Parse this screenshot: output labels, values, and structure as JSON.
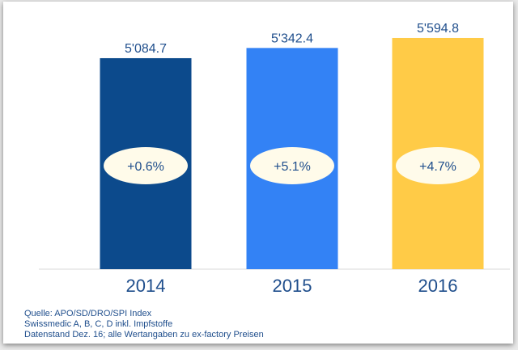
{
  "chart_data": {
    "type": "bar",
    "categories": [
      "2014",
      "2015",
      "2016"
    ],
    "values": [
      5084.7,
      5342.4,
      5594.8
    ],
    "value_labels": [
      "5'084.7",
      "5'342.4",
      "5'594.8"
    ],
    "growth_labels": [
      "+0.6%",
      "+5.1%",
      "+4.7%"
    ],
    "colors": [
      "#0c4a8c",
      "#3382f5",
      "#ffcb47"
    ],
    "title": "",
    "xlabel": "",
    "ylabel": "",
    "ylim": [
      -240,
      6553
    ],
    "grid": false
  },
  "footnotes": [
    "Quelle: APO/SD/DRO/SPI Index",
    "Swissmedic A, B, C, D inkl. Impfstoffe",
    "Datenstand Dez. 16; alle Wertangaben zu ex-factory Preisen"
  ]
}
